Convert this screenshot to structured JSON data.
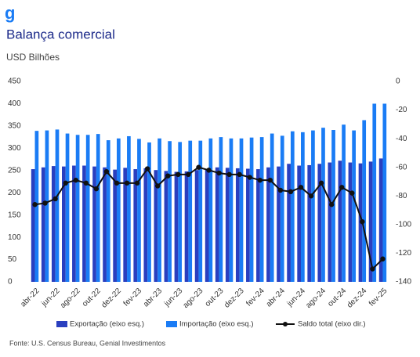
{
  "chart_data": {
    "type": "bar-line",
    "title": "Balança comercial",
    "subtitle": "USD Bilhões",
    "source": "Fonte: U.S. Census Bureau, Genial Investimentos",
    "categories": [
      "abr-22",
      null,
      "jun-22",
      null,
      "ago-22",
      null,
      "out-22",
      null,
      "dez-22",
      null,
      "fev-23",
      null,
      "abr-23",
      null,
      "jun-23",
      null,
      "ago-23",
      null,
      "out-23",
      null,
      "dez-23",
      null,
      "fev-24",
      null,
      "abr-24",
      null,
      "jun-24",
      null,
      "ago-24",
      null,
      "out-24",
      null,
      "dez-24",
      null,
      "fev-25"
    ],
    "series": [
      {
        "name": "Exportação (eixo esq.)",
        "color": "#2a3fbf",
        "values": [
          253,
          257,
          260,
          259,
          261,
          261,
          259,
          257,
          252,
          256,
          253,
          255,
          251,
          249,
          247,
          248,
          251,
          253,
          257,
          256,
          255,
          254,
          253,
          257,
          259,
          265,
          261,
          262,
          265,
          268,
          272,
          268,
          266,
          270,
          277
        ]
      },
      {
        "name": "Importação (eixo esq.)",
        "color": "#1a7cf5",
        "values": [
          339,
          340,
          342,
          333,
          330,
          330,
          332,
          318,
          322,
          327,
          321,
          313,
          322,
          316,
          314,
          317,
          317,
          322,
          325,
          322,
          322,
          324,
          325,
          333,
          328,
          338,
          336,
          340,
          346,
          341,
          353,
          340,
          363,
          400,
          400
        ]
      },
      {
        "name": "Saldo total (eixo dir.)",
        "color": "#111111",
        "axis": "y2",
        "values": [
          -86,
          -85,
          -82,
          -71,
          -69,
          -71,
          -75,
          -63,
          -71,
          -71,
          -71,
          -61,
          -73,
          -66,
          -65,
          -65,
          -60,
          -62,
          -64,
          -65,
          -65,
          -67,
          -69,
          -69,
          -76,
          -77,
          -74,
          -80,
          -71,
          -86,
          -74,
          -78,
          -98,
          -131,
          -124
        ]
      }
    ],
    "ylim": [
      0,
      450
    ],
    "yticks": [
      0,
      50,
      100,
      150,
      200,
      250,
      300,
      350,
      400,
      450
    ],
    "y2lim": [
      -140,
      0
    ],
    "y2ticks": [
      -140,
      -120,
      -100,
      -80,
      -60,
      -40,
      -20,
      0
    ]
  }
}
